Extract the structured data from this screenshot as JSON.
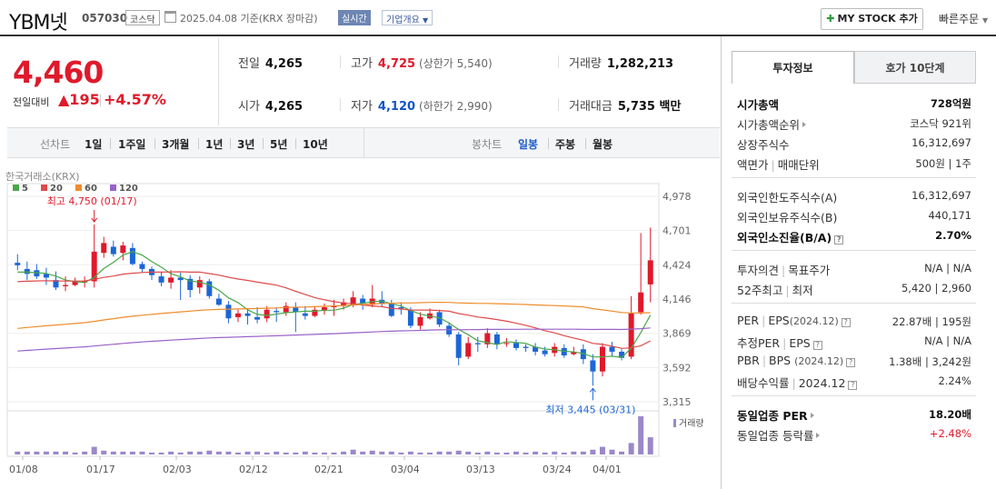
{
  "header": {
    "name": "YBM넷",
    "code": "057030",
    "market": "코스닥",
    "date_text": "2025.04.08  기준(KRX 장마감)",
    "realtime_label": "실시간",
    "corp_label": "기업개요",
    "mystock_label": "MY STOCK 추가",
    "quick_label": "빠른주문"
  },
  "price": {
    "now": "4,460",
    "compare_label": "전일대비",
    "change": "▲195",
    "percent": "+4.57%"
  },
  "stats": {
    "prev_label": "전일",
    "prev": "4,265",
    "high_label": "고가",
    "high": "4,725",
    "upper_limit": "(상한가 5,540)",
    "volume_label": "거래량",
    "volume": "1,282,213",
    "open_label": "시가",
    "open": "4,265",
    "low_label": "저가",
    "low": "4,120",
    "lower_limit": "(하한가 2,990)",
    "amount_label": "거래대금",
    "amount": "5,735 백만"
  },
  "period_bar": {
    "line_label": "선차트",
    "line_items": [
      "1일",
      "1주일",
      "3개월",
      "1년",
      "3년",
      "5년",
      "10년"
    ],
    "candle_label": "봉차트",
    "candle_items": [
      "일봉",
      "주봉",
      "월봉"
    ],
    "candle_selected": "일봉"
  },
  "chart_data": {
    "type": "candlestick",
    "source_label": "한국거래소(KRX)",
    "legend": [
      {
        "name": "5",
        "color": "#4aa84a"
      },
      {
        "name": "20",
        "color": "#e04a4a"
      },
      {
        "name": "60",
        "color": "#f08c2a"
      },
      {
        "name": "120",
        "color": "#9a62c8"
      }
    ],
    "y_ticks": [
      "4,978",
      "4,701",
      "4,424",
      "4,146",
      "3,869",
      "3,592",
      "3,315"
    ],
    "ylim": [
      3315,
      4978
    ],
    "x_ticks": [
      "01/08",
      "01/17",
      "02/03",
      "02/12",
      "02/21",
      "03/04",
      "03/13",
      "03/24",
      "04/01"
    ],
    "high_annotation": "최고 4,750 (01/17)",
    "low_annotation": "최저 3,445 (03/31)",
    "volume_label": "거래량",
    "candles": [
      [
        4440,
        4420,
        4510,
        4380
      ],
      [
        4390,
        4350,
        4450,
        4300
      ],
      [
        4380,
        4330,
        4430,
        4310
      ],
      [
        4350,
        4320,
        4400,
        4260
      ],
      [
        4300,
        4240,
        4370,
        4220
      ],
      [
        4250,
        4260,
        4330,
        4210
      ],
      [
        4260,
        4290,
        4320,
        4250
      ],
      [
        4280,
        4290,
        4330,
        4240
      ],
      [
        4290,
        4530,
        4750,
        4240
      ],
      [
        4520,
        4600,
        4650,
        4480
      ],
      [
        4570,
        4510,
        4620,
        4490
      ],
      [
        4520,
        4580,
        4610,
        4460
      ],
      [
        4560,
        4430,
        4600,
        4420
      ],
      [
        4430,
        4390,
        4450,
        4360
      ],
      [
        4390,
        4340,
        4410,
        4300
      ],
      [
        4330,
        4280,
        4360,
        4250
      ],
      [
        4280,
        4320,
        4380,
        4230
      ],
      [
        4320,
        4300,
        4360,
        4140
      ],
      [
        4310,
        4220,
        4340,
        4160
      ],
      [
        4240,
        4300,
        4330,
        4190
      ],
      [
        4290,
        4170,
        4310,
        4150
      ],
      [
        4150,
        4100,
        4190,
        4090
      ],
      [
        4100,
        3990,
        4130,
        3950
      ],
      [
        4000,
        4030,
        4060,
        3960
      ],
      [
        4030,
        4010,
        4070,
        3940
      ],
      [
        4000,
        3980,
        4080,
        3950
      ],
      [
        3990,
        4060,
        4090,
        3960
      ],
      [
        4050,
        4040,
        4080,
        3960
      ],
      [
        4040,
        4090,
        4120,
        4010
      ],
      [
        4080,
        4040,
        4120,
        3880
      ],
      [
        4030,
        4010,
        4090,
        3980
      ],
      [
        4010,
        4060,
        4090,
        4000
      ],
      [
        4050,
        4080,
        4110,
        4020
      ],
      [
        4080,
        4090,
        4140,
        4010
      ],
      [
        4090,
        4120,
        4150,
        4060
      ],
      [
        4100,
        4160,
        4210,
        4080
      ],
      [
        4150,
        4110,
        4180,
        4060
      ],
      [
        4100,
        4150,
        4260,
        4080
      ],
      [
        4140,
        4110,
        4210,
        4080
      ],
      [
        4110,
        4010,
        4140,
        4000
      ],
      [
        4080,
        4070,
        4120,
        4020
      ],
      [
        4060,
        3930,
        4080,
        3910
      ],
      [
        3930,
        4000,
        4040,
        3900
      ],
      [
        3990,
        4030,
        4070,
        3980
      ],
      [
        4040,
        3940,
        4060,
        3920
      ],
      [
        3930,
        3860,
        3960,
        3840
      ],
      [
        3860,
        3670,
        3880,
        3610
      ],
      [
        3680,
        3790,
        3840,
        3660
      ],
      [
        3790,
        3780,
        3840,
        3720
      ],
      [
        3780,
        3870,
        3910,
        3750
      ],
      [
        3860,
        3780,
        3880,
        3740
      ],
      [
        3790,
        3790,
        3830,
        3760
      ],
      [
        3790,
        3750,
        3820,
        3730
      ],
      [
        3760,
        3750,
        3780,
        3720
      ],
      [
        3760,
        3720,
        3790,
        3690
      ],
      [
        3730,
        3700,
        3760,
        3680
      ],
      [
        3710,
        3760,
        3790,
        3680
      ],
      [
        3750,
        3690,
        3780,
        3670
      ],
      [
        3700,
        3720,
        3760,
        3690
      ],
      [
        3740,
        3660,
        3780,
        3620
      ],
      [
        3650,
        3560,
        3700,
        3445
      ],
      [
        3560,
        3760,
        3790,
        3520
      ],
      [
        3760,
        3720,
        3800,
        3680
      ],
      [
        3720,
        3670,
        3740,
        3650
      ],
      [
        3680,
        4030,
        4170,
        3660
      ],
      [
        4040,
        4200,
        4680,
        4020
      ],
      [
        4265,
        4460,
        4725,
        4120
      ]
    ],
    "volumes": [
      3,
      3,
      3,
      3,
      3,
      3,
      2,
      3,
      8,
      4,
      3,
      3,
      3,
      3,
      2,
      2,
      3,
      2,
      3,
      3,
      4,
      3,
      3,
      2,
      3,
      3,
      2,
      3,
      2,
      2,
      3,
      2,
      2,
      2,
      3,
      5,
      3,
      4,
      3,
      3,
      2,
      3,
      2,
      2,
      3,
      3,
      4,
      3,
      2,
      3,
      2,
      2,
      3,
      2,
      3,
      2,
      3,
      2,
      3,
      3,
      5,
      8,
      5,
      3,
      12,
      40,
      18
    ]
  },
  "panel": {
    "tab_info": "투자정보",
    "tab_quote": "호가 10단계",
    "market_cap_label": "시가총액",
    "market_cap": "728억원",
    "cap_rank_label": "시가총액순위",
    "cap_rank": "코스닥 921위",
    "listed_label": "상장주식수",
    "listed": "16,312,697",
    "face_label": "액면가",
    "unit_label": "매매단위",
    "face_unit": "500원 | 1주",
    "foreign_limit_label": "외국인한도주식수(A)",
    "foreign_limit": "16,312,697",
    "foreign_hold_label": "외국인보유주식수(B)",
    "foreign_hold": "440,171",
    "foreign_ratio_label": "외국인소진율(B/A)",
    "foreign_ratio": "2.70%",
    "opinion_label": "투자의견",
    "target_label": "목표주가",
    "opinion_target": "N/A | N/A",
    "wk52_label": "52주최고",
    "wk52_low_label": "최저",
    "wk52": "5,420 | 2,960",
    "per_label": "PER",
    "eps_label": "EPS",
    "eps_year": "(2024.12)",
    "per_eps": "22.87배 | 195원",
    "est_per_label": "추정PER",
    "est_eps_label": "EPS",
    "est_per_eps": "N/A | N/A",
    "pbr_label": "PBR",
    "bps_label": "BPS",
    "bps_year": "(2024.12)",
    "pbr_bps": "1.38배 | 3,242원",
    "div_label": "배당수익률",
    "div_year": "2024.12",
    "div": "2.24%",
    "sector_per_label": "동일업종 PER",
    "sector_per": "18.20배",
    "sector_rate_label": "동일업종 등락률",
    "sector_rate": "+2.48%"
  }
}
